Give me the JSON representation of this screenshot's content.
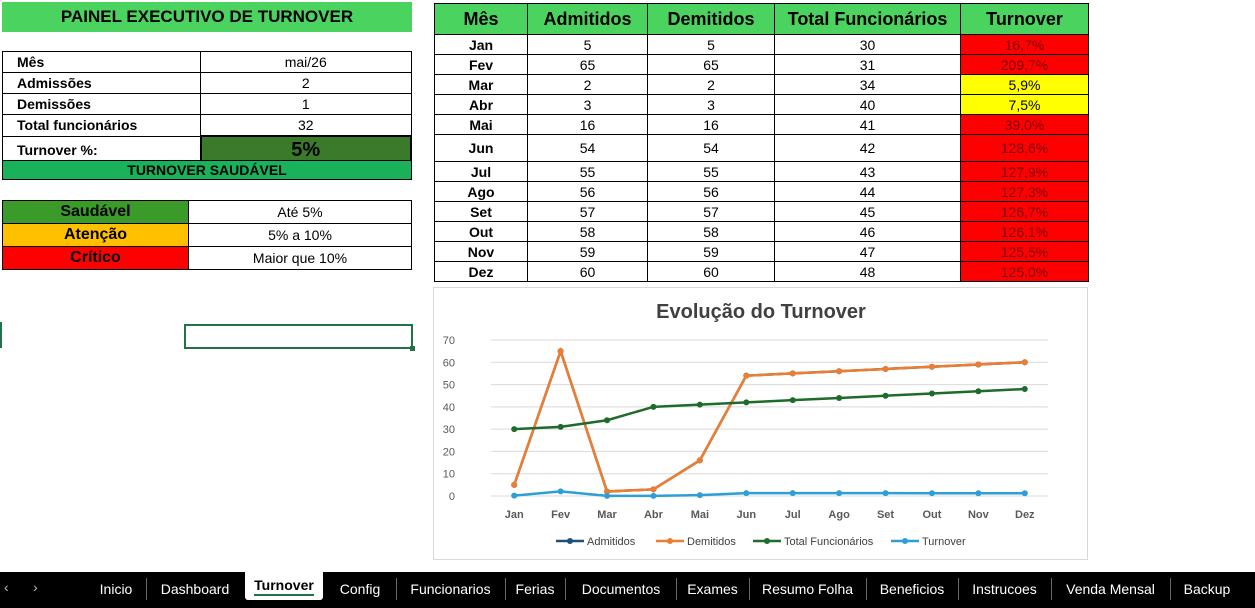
{
  "panel": {
    "title": "PAINEL EXECUTIVO DE TURNOVER",
    "kpis": [
      {
        "label": "Mês",
        "value": "mai/26"
      },
      {
        "label": "Admissões",
        "value": "2"
      },
      {
        "label": "Demissões",
        "value": "1"
      },
      {
        "label": "Total funcionários",
        "value": "32"
      }
    ],
    "turnover_label": "Turnover %:",
    "turnover_value": "5%",
    "status": "TURNOVER SAUDÁVEL",
    "status_color": "#19b25a",
    "legend": [
      {
        "label": "Saudável",
        "range": "Até 5%",
        "color": "#3a9a2a"
      },
      {
        "label": "Atenção",
        "range": "5% a 10%",
        "color": "#ffc000"
      },
      {
        "label": "Crítico",
        "range": "Maior que 10%",
        "color": "#ff0000"
      }
    ]
  },
  "table": {
    "headers": [
      "Mês",
      "Admitidos",
      "Demitidos",
      "Total Funcionários",
      "Turnover"
    ],
    "rows": [
      {
        "mes": "Jan",
        "adm": "5",
        "dem": "5",
        "total": "30",
        "turnover": "16,7%",
        "status": "red"
      },
      {
        "mes": "Fev",
        "adm": "65",
        "dem": "65",
        "total": "31",
        "turnover": "209,7%",
        "status": "red"
      },
      {
        "mes": "Mar",
        "adm": "2",
        "dem": "2",
        "total": "34",
        "turnover": "5,9%",
        "status": "yellow"
      },
      {
        "mes": "Abr",
        "adm": "3",
        "dem": "3",
        "total": "40",
        "turnover": "7,5%",
        "status": "yellow"
      },
      {
        "mes": "Mai",
        "adm": "16",
        "dem": "16",
        "total": "41",
        "turnover": "39,0%",
        "status": "red"
      },
      {
        "mes": "Jun",
        "adm": "54",
        "dem": "54",
        "total": "42",
        "turnover": "128,6%",
        "status": "red"
      },
      {
        "mes": "Jul",
        "adm": "55",
        "dem": "55",
        "total": "43",
        "turnover": "127,9%",
        "status": "red"
      },
      {
        "mes": "Ago",
        "adm": "56",
        "dem": "56",
        "total": "44",
        "turnover": "127,3%",
        "status": "red"
      },
      {
        "mes": "Set",
        "adm": "57",
        "dem": "57",
        "total": "45",
        "turnover": "126,7%",
        "status": "red"
      },
      {
        "mes": "Out",
        "adm": "58",
        "dem": "58",
        "total": "46",
        "turnover": "126,1%",
        "status": "red"
      },
      {
        "mes": "Nov",
        "adm": "59",
        "dem": "59",
        "total": "47",
        "turnover": "125,5%",
        "status": "red"
      },
      {
        "mes": "Dez",
        "adm": "60",
        "dem": "60",
        "total": "48",
        "turnover": "125,0%",
        "status": "red"
      }
    ]
  },
  "chart_data": {
    "type": "line",
    "title": "Evolução do Turnover",
    "categories": [
      "Jan",
      "Fev",
      "Mar",
      "Abr",
      "Mai",
      "Jun",
      "Jul",
      "Ago",
      "Set",
      "Out",
      "Nov",
      "Dez"
    ],
    "ylim": [
      0,
      70
    ],
    "yticks": [
      0,
      10,
      20,
      30,
      40,
      50,
      60,
      70
    ],
    "grid": true,
    "legend_position": "bottom",
    "series": [
      {
        "name": "Admitidos",
        "color": "#1f4e79",
        "values": [
          5,
          65,
          2,
          3,
          16,
          54,
          55,
          56,
          57,
          58,
          59,
          60
        ]
      },
      {
        "name": "Demitidos",
        "color": "#ed7d31",
        "values": [
          5,
          65,
          2,
          3,
          16,
          54,
          55,
          56,
          57,
          58,
          59,
          60
        ]
      },
      {
        "name": "Total Funcionários",
        "color": "#1e6b2a",
        "values": [
          30,
          31,
          34,
          40,
          41,
          42,
          43,
          44,
          45,
          46,
          47,
          48
        ]
      },
      {
        "name": "Turnover",
        "color": "#2e9fd6",
        "values": [
          0.167,
          2.097,
          0.059,
          0.075,
          0.39,
          1.286,
          1.279,
          1.273,
          1.267,
          1.261,
          1.255,
          1.25
        ]
      }
    ]
  },
  "tabs": {
    "prev": "‹",
    "next": "›",
    "items": [
      "Inicio",
      "Dashboard",
      "Turnover",
      "Config",
      "Funcionarios",
      "Ferias",
      "Documentos",
      "Exames",
      "Resumo Folha",
      "Beneficios",
      "Instrucoes",
      "Venda Mensal",
      "Backup"
    ],
    "active": "Turnover"
  }
}
